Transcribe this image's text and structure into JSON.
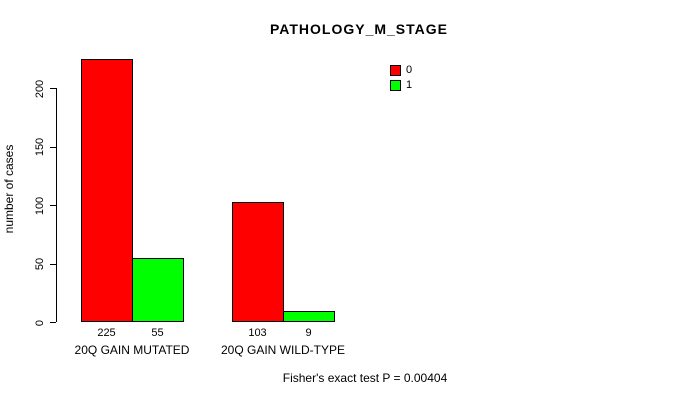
{
  "title": "PATHOLOGY_M_STAGE",
  "footer_annotation": "Fisher's exact test P = 0.00404",
  "chart_data": {
    "type": "bar",
    "title": "PATHOLOGY_M_STAGE",
    "xlabel": "",
    "ylabel": "number of cases",
    "categories": [
      "20Q GAIN MUTATED",
      "20Q GAIN WILD-TYPE"
    ],
    "series": [
      {
        "name": "0",
        "color": "#FF0000",
        "values": [
          225,
          103
        ]
      },
      {
        "name": "1",
        "color": "#00FF00",
        "values": [
          55,
          9
        ]
      }
    ],
    "bar_value_labels": [
      [
        "225",
        "55"
      ],
      [
        "103",
        "9"
      ]
    ],
    "yticks": [
      0,
      50,
      100,
      150,
      200
    ],
    "axis_range": [
      0,
      200
    ],
    "grid": false,
    "legend_position": "top-right",
    "legend": [
      {
        "label": "0",
        "color": "#FF0000"
      },
      {
        "label": "1",
        "color": "#00FF00"
      }
    ],
    "annotation": "Fisher's exact test P = 0.00404",
    "background_color": "#FFFFFF",
    "axis_color": "#000000"
  }
}
